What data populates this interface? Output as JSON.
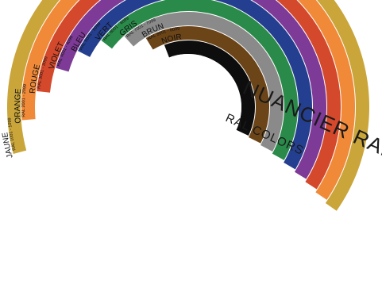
{
  "title": "NUANCIER RAL",
  "subtitle": "RAL COLORS",
  "bands": [
    {
      "name": "JAUNE",
      "range": "RAL 1001 - 1099",
      "color": "#C9A53A"
    },
    {
      "name": "ORANGE",
      "range": "RAL 2001 - 2099",
      "color": "#F08A38"
    },
    {
      "name": "ROUGE",
      "range": "RAL 3001 - 3099",
      "color": "#D4492C"
    },
    {
      "name": "VIOLET",
      "range": "RAL 4001 - 4099",
      "color": "#7D3A96"
    },
    {
      "name": "BLEU",
      "range": "RAL 5001 - 5099",
      "color": "#243F8F"
    },
    {
      "name": "VERT",
      "range": "RAL 6001 - 6099",
      "color": "#2A8A4A"
    },
    {
      "name": "GRIS",
      "range": "RAL 7001 - 7099",
      "color": "#8A8A8A"
    },
    {
      "name": "BRUN",
      "range": "RAL 8001 - 8099",
      "color": "#6B4418"
    },
    {
      "name": "NOIR",
      "range": "RAL 9001 - 9099",
      "color": "#0D0D0D"
    }
  ]
}
